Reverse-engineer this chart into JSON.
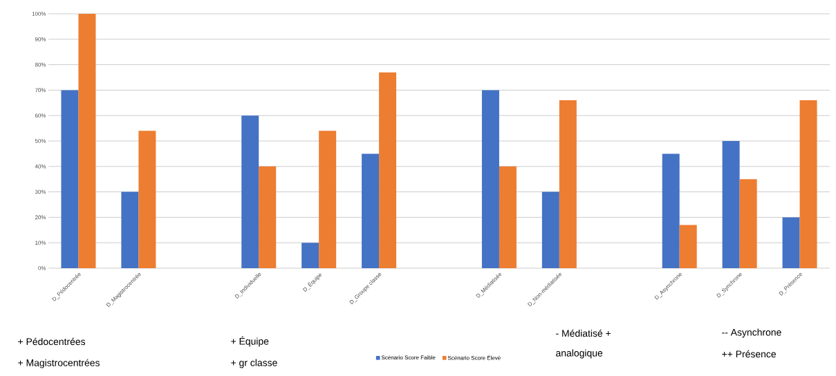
{
  "chart_data": {
    "type": "bar",
    "categories": [
      "D_Pédocentrée",
      "D_Magistrocentrée",
      null,
      "D_Individuelle",
      "D_Équipe",
      "D_Groupe classe",
      null,
      "D_Médiatisée",
      "D_Non-médiatisée",
      null,
      "D_Asynchrone",
      "D_Synchrone",
      "D_Présence"
    ],
    "series": [
      {
        "name": "Scénario Score Faible",
        "color": "#4472c4",
        "values": [
          70,
          30,
          null,
          60,
          10,
          45,
          null,
          70,
          30,
          null,
          45,
          50,
          20
        ]
      },
      {
        "name": "Scénario Score Élevé",
        "color": "#ed7d31",
        "values": [
          100,
          54,
          null,
          40,
          54,
          77,
          null,
          40,
          66,
          null,
          17,
          35,
          66
        ]
      }
    ],
    "ylim": [
      0,
      100
    ],
    "yticks": [
      {
        "value": 0,
        "label": "0%"
      },
      {
        "value": 10,
        "label": "10%"
      },
      {
        "value": 20,
        "label": "20%"
      },
      {
        "value": 30,
        "label": "30%"
      },
      {
        "value": 40,
        "label": "40%"
      },
      {
        "value": 50,
        "label": "50%"
      },
      {
        "value": 60,
        "label": "60%"
      },
      {
        "value": 70,
        "label": "70%"
      },
      {
        "value": 80,
        "label": "80%"
      },
      {
        "value": 90,
        "label": "90%"
      },
      {
        "value": 100,
        "label": "100%"
      }
    ],
    "grid": "y",
    "legend": "bottom",
    "annotations": [
      "+ Pédocentrées",
      "+ Magistrocentrées",
      "+ Équipe",
      "+ gr classe",
      "- Médiatisé +",
      "analogique",
      "-- Asynchrone",
      "++ Présence"
    ]
  }
}
